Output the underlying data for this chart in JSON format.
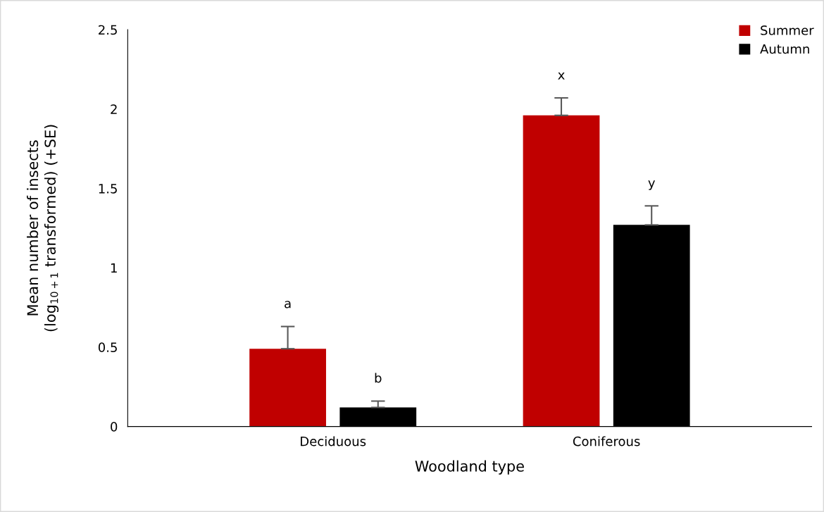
{
  "chart_data": {
    "type": "bar",
    "xlabel": "Woodland type",
    "ylabel": "Mean number of insects\n(log$_{10+1}$ transformed) (+SE)",
    "categories": [
      "Deciduous",
      "Coniferous"
    ],
    "series": [
      {
        "name": "Summer",
        "color": "#c00000",
        "values": [
          0.49,
          1.96
        ],
        "errors": [
          0.14,
          0.11
        ]
      },
      {
        "name": "Autumn",
        "color": "#000000",
        "values": [
          0.12,
          1.27
        ],
        "errors": [
          0.04,
          0.12
        ]
      }
    ],
    "annotations": [
      "a",
      "b",
      "x",
      "y"
    ],
    "ylim": [
      0,
      2.5
    ],
    "yticks": [
      0,
      0.5,
      1,
      1.5,
      2,
      2.5
    ],
    "grid": false,
    "legend": "top right"
  }
}
